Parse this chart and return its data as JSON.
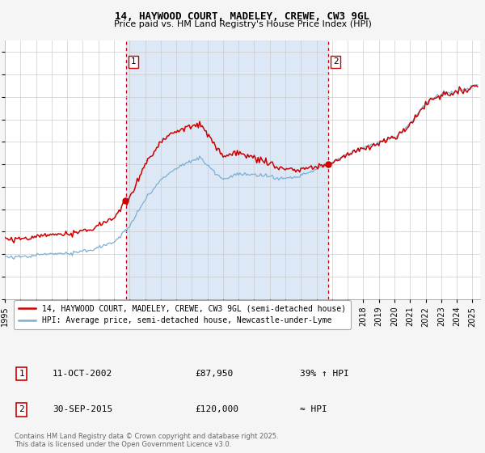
{
  "title1": "14, HAYWOOD COURT, MADELEY, CREWE, CW3 9GL",
  "title2": "Price paid vs. HM Land Registry's House Price Index (HPI)",
  "ytick_vals": [
    0,
    20000,
    40000,
    60000,
    80000,
    100000,
    120000,
    140000,
    160000,
    180000,
    200000,
    220000
  ],
  "ylim": [
    0,
    230000
  ],
  "sale1_t": 2002.78,
  "sale1_p": 87950,
  "sale2_t": 2015.75,
  "sale2_p": 120000,
  "line1_color": "#cc0000",
  "line2_color": "#7bafd4",
  "shade_color": "#dce8f5",
  "grid_color": "#cccccc",
  "bg_color": "#ffffff",
  "fig_bg": "#f5f5f5",
  "legend1": "14, HAYWOOD COURT, MADELEY, CREWE, CW3 9GL (semi-detached house)",
  "legend2": "HPI: Average price, semi-detached house, Newcastle-under-Lyme",
  "annot1_date": "11-OCT-2002",
  "annot1_price": "£87,950",
  "annot1_hpi": "39% ↑ HPI",
  "annot2_date": "30-SEP-2015",
  "annot2_price": "£120,000",
  "annot2_hpi": "≈ HPI",
  "footer": "Contains HM Land Registry data © Crown copyright and database right 2025.\nThis data is licensed under the Open Government Licence v3.0."
}
